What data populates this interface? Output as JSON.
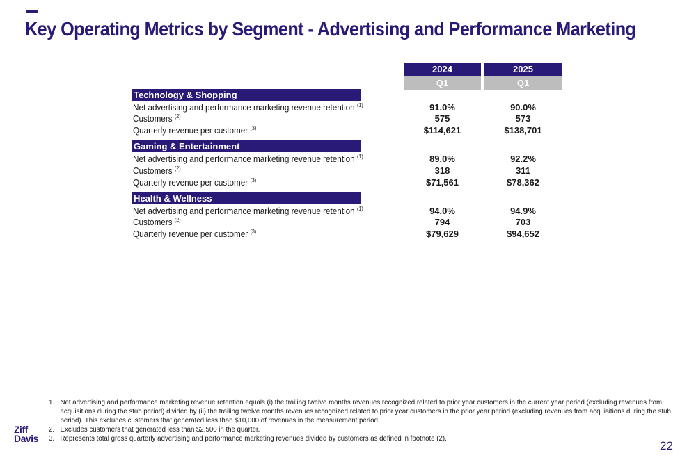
{
  "title": "Key Operating Metrics by Segment - Advertising and Performance Marketing",
  "columns": [
    {
      "year": "2024",
      "quarter": "Q1"
    },
    {
      "year": "2025",
      "quarter": "Q1"
    }
  ],
  "segments": [
    {
      "name": "Technology & Shopping",
      "rows": [
        {
          "label": "Net advertising and performance marketing revenue retention",
          "note": "(1)",
          "v1": "91.0%",
          "v2": "90.0%"
        },
        {
          "label": "Customers",
          "note": "(2)",
          "v1": "575",
          "v2": "573"
        },
        {
          "label": "Quarterly revenue per customer",
          "note": "(3)",
          "v1": "$114,621",
          "v2": "$138,701"
        }
      ]
    },
    {
      "name": "Gaming & Entertainment",
      "rows": [
        {
          "label": "Net advertising and performance marketing revenue retention",
          "note": "(1)",
          "v1": "89.0%",
          "v2": "92.2%"
        },
        {
          "label": "Customers",
          "note": "(2)",
          "v1": "318",
          "v2": "311"
        },
        {
          "label": "Quarterly revenue per customer",
          "note": "(3)",
          "v1": "$71,561",
          "v2": "$78,362"
        }
      ]
    },
    {
      "name": "Health & Wellness",
      "rows": [
        {
          "label": "Net advertising and performance marketing revenue retention",
          "note": "(1)",
          "v1": "94.0%",
          "v2": "94.9%"
        },
        {
          "label": "Customers",
          "note": "(2)",
          "v1": "794",
          "v2": "703"
        },
        {
          "label": "Quarterly revenue per customer",
          "note": "(3)",
          "v1": "$79,629",
          "v2": "$94,652"
        }
      ]
    }
  ],
  "footnotes": [
    {
      "num": "1.",
      "text": "Net advertising and performance marketing revenue retention equals (i) the trailing twelve months revenues recognized related to prior year customers in the current year period (excluding revenues from acquisitions during the stub period) divided by (ii) the trailing twelve months revenues recognized related to prior year customers in the prior year period (excluding revenues from acquisitions during the stub period). This excludes customers that generated less than $10,000 of revenues in the measurement period."
    },
    {
      "num": "2.",
      "text": "Excludes customers that generated less than $2,500 in the quarter."
    },
    {
      "num": "3.",
      "text": "Represents total gross quarterly advertising and performance marketing revenues divided by customers as defined in footnote (2)."
    }
  ],
  "logo": {
    "line1": "Ziff",
    "line2": "Davis"
  },
  "page_number": "22",
  "colors": {
    "brand": "#2a1a78",
    "quarter_header": "#bdbdbd"
  }
}
